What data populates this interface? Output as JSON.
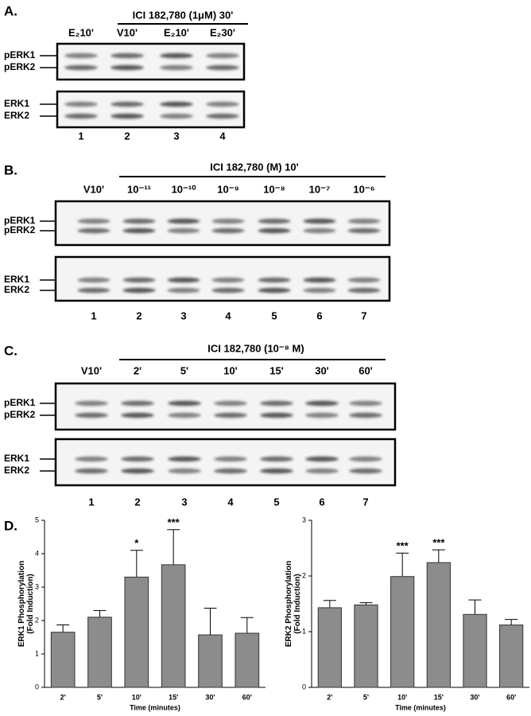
{
  "panels": [
    {
      "letter": "A.",
      "header": "ICI 182,780 (1μM) 30'",
      "lanes": [
        "E₂10'",
        "V10'",
        "E₂10'",
        "E₂30'"
      ],
      "rows": [
        "pERK1",
        "pERK2",
        "ERK1",
        "ERK2"
      ],
      "lane_numbers": [
        "1",
        "2",
        "3",
        "4"
      ]
    },
    {
      "letter": "B.",
      "header": "ICI  182,780 (M) 10'",
      "lanes": [
        "V10'",
        "10⁻¹¹",
        "10⁻¹⁰",
        "10⁻⁹",
        "10⁻⁸",
        "10⁻⁷",
        "10⁻⁶"
      ],
      "rows": [
        "pERK1",
        "pERK2",
        "ERK1",
        "ERK2"
      ],
      "lane_numbers": [
        "1",
        "2",
        "3",
        "4",
        "5",
        "6",
        "7"
      ]
    },
    {
      "letter": "C.",
      "header": "ICI 182,780 (10⁻⁸ M)",
      "lanes": [
        "V10'",
        "2'",
        "5'",
        "10'",
        "15'",
        "30'",
        "60'"
      ],
      "rows": [
        "pERK1",
        "pERK2",
        "ERK1",
        "ERK2"
      ],
      "lane_numbers": [
        "1",
        "2",
        "3",
        "4",
        "5",
        "6",
        "7"
      ]
    }
  ],
  "panel_d_letter": "D.",
  "chart_data": [
    {
      "type": "bar",
      "y_label": [
        "ERK1 Phosphorylation",
        "(Fold Induction)"
      ],
      "x_label": "Time (minutes)",
      "categories": [
        "2'",
        "5'",
        "10'",
        "15'",
        "30'",
        "60'"
      ],
      "values": [
        1.65,
        2.1,
        3.3,
        3.67,
        1.57,
        1.62
      ],
      "errors": [
        0.22,
        0.2,
        0.8,
        1.05,
        0.8,
        0.47
      ],
      "value_annotations": [
        null,
        null,
        "*",
        "***",
        null,
        null
      ],
      "color": "#8c8c8c",
      "ylim": [
        0,
        5
      ],
      "yticks": [
        0,
        1,
        2,
        3,
        4,
        5
      ]
    },
    {
      "type": "bar",
      "y_label": [
        "ERK2 Phosphorylation",
        "(Fold Induction)"
      ],
      "x_label": "Time (minutes)",
      "categories": [
        "2'",
        "5'",
        "10'",
        "15'",
        "30'",
        "60'"
      ],
      "values": [
        1.43,
        1.48,
        1.99,
        2.24,
        1.31,
        1.12
      ],
      "errors": [
        0.13,
        0.04,
        0.42,
        0.23,
        0.26,
        0.1
      ],
      "value_annotations": [
        null,
        null,
        "***",
        "***",
        null,
        null
      ],
      "color": "#8c8c8c",
      "ylim": [
        0,
        3
      ],
      "yticks": [
        0,
        1,
        2,
        3
      ]
    }
  ]
}
